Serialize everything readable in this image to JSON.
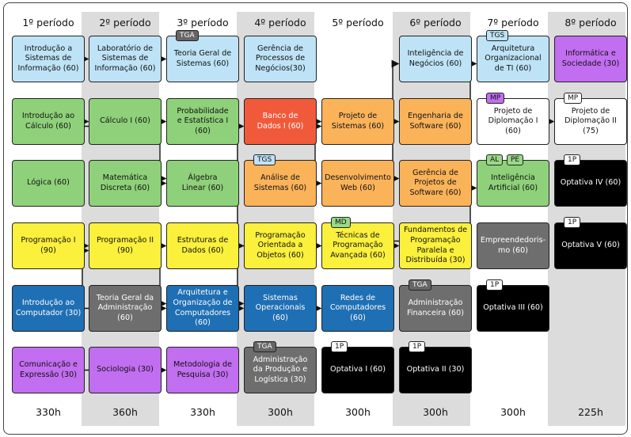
{
  "columns": [
    {
      "label": "1º período",
      "total": "330h"
    },
    {
      "label": "2º período",
      "total": "360h"
    },
    {
      "label": "3º período",
      "total": "330h"
    },
    {
      "label": "4º período",
      "total": "300h"
    },
    {
      "label": "5º período",
      "total": "300h"
    },
    {
      "label": "6º período",
      "total": "300h"
    },
    {
      "label": "7º período",
      "total": "300h"
    },
    {
      "label": "8º período",
      "total": "225h"
    }
  ],
  "shaded_columns": [
    1,
    3,
    5,
    7
  ],
  "colors": {
    "blue_light": "#bfe3f6",
    "green": "#8fd17a",
    "yellow": "#fbf03c",
    "blue_dark": "#1f6fb4",
    "purple": "#c26ef0",
    "red": "#f05a3b",
    "orange": "#fbb35a",
    "gray": "#6e6e6e",
    "black": "#000000",
    "white": "#ffffff",
    "tag_gray": "#666666",
    "tag_green": "#98d987",
    "tag_blue": "#bfe3f6",
    "tag_purple": "#c26ef0"
  },
  "courses": [
    {
      "id": "isi",
      "col": 0,
      "row": 0,
      "label": "Introdução a\nSistemas de\nInformação (60)",
      "color": "blue_light"
    },
    {
      "id": "calc0",
      "col": 0,
      "row": 1,
      "label": "Introdução ao\nCálculo (60)",
      "color": "green"
    },
    {
      "id": "log",
      "col": 0,
      "row": 2,
      "label": "Lógica (60)",
      "color": "green"
    },
    {
      "id": "prog1",
      "col": 0,
      "row": 3,
      "label": "Programação I\n(90)",
      "color": "yellow"
    },
    {
      "id": "icomp",
      "col": 0,
      "row": 4,
      "label": "Introdução ao\nComputador (30)",
      "color": "blue_dark"
    },
    {
      "id": "com",
      "col": 0,
      "row": 5,
      "label": "Comunicação e\nExpressão (30)",
      "color": "purple"
    },
    {
      "id": "lab",
      "col": 1,
      "row": 0,
      "label": "Laboratório de\nSistemas de\nInformação (60)",
      "color": "blue_light"
    },
    {
      "id": "calc1",
      "col": 1,
      "row": 1,
      "label": "Cálculo I (60)",
      "color": "green"
    },
    {
      "id": "md",
      "col": 1,
      "row": 2,
      "label": "Matemática\nDiscreta (60)",
      "color": "green"
    },
    {
      "id": "prog2",
      "col": 1,
      "row": 3,
      "label": "Programação II\n(90)",
      "color": "yellow"
    },
    {
      "id": "tga",
      "col": 1,
      "row": 4,
      "label": "Teoria Geral da\nAdministração\n(60)",
      "color": "gray"
    },
    {
      "id": "soc",
      "col": 1,
      "row": 5,
      "label": "Sociologia (30)",
      "color": "purple"
    },
    {
      "id": "tgs",
      "col": 2,
      "row": 0,
      "label": "Teoria Geral de\nSistemas (60)",
      "color": "blue_light",
      "tag": {
        "text": "TGA",
        "color": "tag_gray"
      }
    },
    {
      "id": "prob",
      "col": 2,
      "row": 1,
      "label": "Probabilidade\ne Estatística I (60)",
      "color": "green"
    },
    {
      "id": "alg",
      "col": 2,
      "row": 2,
      "label": "Álgebra\nLinear (60)",
      "color": "green"
    },
    {
      "id": "ed",
      "col": 2,
      "row": 3,
      "label": "Estruturas de\nDados (60)",
      "color": "yellow"
    },
    {
      "id": "arq",
      "col": 2,
      "row": 4,
      "label": "Arquitetura e\nOrganização de\nComputadores (60)",
      "color": "blue_dark"
    },
    {
      "id": "met",
      "col": 2,
      "row": 5,
      "label": "Metodologia de\nPesquisa (30)",
      "color": "purple"
    },
    {
      "id": "gpn",
      "col": 3,
      "row": 0,
      "label": "Gerência de\nProcessos de\nNegócios(30)",
      "color": "blue_light"
    },
    {
      "id": "bd",
      "col": 3,
      "row": 1,
      "label": "Banco de\nDados I (60)",
      "color": "red"
    },
    {
      "id": "as",
      "col": 3,
      "row": 2,
      "label": "Análise de\nSistemas (60)",
      "color": "orange",
      "tag": {
        "text": "TGS",
        "color": "tag_blue"
      }
    },
    {
      "id": "poo",
      "col": 3,
      "row": 3,
      "label": "Programação\nOrientada a\nObjetos (60)",
      "color": "yellow"
    },
    {
      "id": "so",
      "col": 3,
      "row": 4,
      "label": "Sistemas\nOperacionais (60)",
      "color": "blue_dark"
    },
    {
      "id": "apl",
      "col": 3,
      "row": 5,
      "label": "Administração\nda Produção e\nLogística (30)",
      "color": "gray",
      "tag": {
        "text": "TGA",
        "color": "tag_gray"
      }
    },
    {
      "id": "ps",
      "col": 4,
      "row": 1,
      "label": "Projeto de\nSistemas (60)",
      "color": "orange"
    },
    {
      "id": "dw",
      "col": 4,
      "row": 2,
      "label": "Desenvolvimento\nWeb (60)",
      "color": "orange"
    },
    {
      "id": "tpa",
      "col": 4,
      "row": 3,
      "label": "Técnicas de\nProgramação\nAvançada (60)",
      "color": "yellow",
      "tag": {
        "text": "MD",
        "color": "tag_green"
      }
    },
    {
      "id": "rc",
      "col": 4,
      "row": 4,
      "label": "Redes de\nComputadores\n(60)",
      "color": "blue_dark"
    },
    {
      "id": "opt1",
      "col": 4,
      "row": 5,
      "label": "Optativa I (60)",
      "color": "black",
      "tag": {
        "text": "1P",
        "color": "white"
      }
    },
    {
      "id": "in",
      "col": 5,
      "row": 0,
      "label": "Inteligência de\nNegócios (60)",
      "color": "blue_light"
    },
    {
      "id": "es",
      "col": 5,
      "row": 1,
      "label": "Engenharia de\nSoftware (60)",
      "color": "orange"
    },
    {
      "id": "gps",
      "col": 5,
      "row": 2,
      "label": "Gerência de\nProjetos de\nSoftware (60)",
      "color": "orange"
    },
    {
      "id": "fpp",
      "col": 5,
      "row": 3,
      "label": "Fundamentos de\nProgramação\nParalela e\nDistribuída (30)",
      "color": "yellow"
    },
    {
      "id": "af",
      "col": 5,
      "row": 4,
      "label": "Administração\nFinanceira (60)",
      "color": "gray",
      "tag": {
        "text": "TGA",
        "color": "tag_gray"
      }
    },
    {
      "id": "opt2",
      "col": 5,
      "row": 5,
      "label": "Optativa II (30)",
      "color": "black",
      "tag": {
        "text": "1P",
        "color": "white"
      }
    },
    {
      "id": "aoti",
      "col": 6,
      "row": 0,
      "label": "Arquitetura\nOrganizacional\nde TI (60)",
      "color": "blue_light",
      "tag": {
        "text": "TGS",
        "color": "tag_blue"
      }
    },
    {
      "id": "pd1",
      "col": 6,
      "row": 1,
      "label": "Projeto de\nDiplomação I (60)",
      "color": "white",
      "tag": {
        "text": "MP",
        "color": "tag_purple"
      }
    },
    {
      "id": "ia",
      "col": 6,
      "row": 2,
      "label": "Inteligência\nArtificial (60)",
      "color": "green",
      "tags": [
        {
          "text": "AL",
          "color": "tag_green"
        },
        {
          "text": "PE",
          "color": "tag_green"
        }
      ]
    },
    {
      "id": "emp",
      "col": 6,
      "row": 3,
      "label": "Empreendedoris-\nmo (60)",
      "color": "gray"
    },
    {
      "id": "opt3",
      "col": 6,
      "row": 4,
      "label": "Optativa III (60)",
      "color": "black",
      "tag": {
        "text": "1P",
        "color": "white"
      }
    },
    {
      "id": "isoc",
      "col": 7,
      "row": 0,
      "label": "Informática e\nSociedade (30)",
      "color": "purple"
    },
    {
      "id": "pd2",
      "col": 7,
      "row": 1,
      "label": "Projeto de\nDiplomação II (75)",
      "color": "white",
      "tag": {
        "text": "MP",
        "color": "white"
      }
    },
    {
      "id": "opt4",
      "col": 7,
      "row": 2,
      "label": "Optativa IV (60)",
      "color": "black",
      "tag": {
        "text": "1P",
        "color": "white"
      }
    },
    {
      "id": "opt5",
      "col": 7,
      "row": 3,
      "label": "Optativa V (60)",
      "color": "black",
      "tag": {
        "text": "1P",
        "color": "white"
      }
    }
  ],
  "prerequisites": [
    [
      "isi",
      "lab"
    ],
    [
      "lab",
      "tgs"
    ],
    [
      "calc0",
      "calc1"
    ],
    [
      "calc0",
      "alg"
    ],
    [
      "calc1",
      "prob"
    ],
    [
      "md",
      "alg"
    ],
    [
      "prog1",
      "prog2"
    ],
    [
      "icomp",
      "prog2"
    ],
    [
      "icomp",
      "arq"
    ],
    [
      "prog2",
      "ed"
    ],
    [
      "prog2",
      "arq"
    ],
    [
      "com",
      "met"
    ],
    [
      "ed",
      "bd"
    ],
    [
      "ed",
      "poo"
    ],
    [
      "ed",
      "so"
    ],
    [
      "ed",
      "tpa"
    ],
    [
      "arq",
      "so"
    ],
    [
      "bd",
      "ps"
    ],
    [
      "as",
      "ps"
    ],
    [
      "as",
      "dw"
    ],
    [
      "poo",
      "tpa"
    ],
    [
      "so",
      "rc"
    ],
    [
      "ps",
      "in"
    ],
    [
      "ps",
      "es"
    ],
    [
      "ps",
      "gps"
    ],
    [
      "tpa",
      "fpp"
    ],
    [
      "tpa",
      "ia"
    ],
    [
      "es",
      "aoti"
    ],
    [
      "pd1",
      "pd2"
    ]
  ]
}
